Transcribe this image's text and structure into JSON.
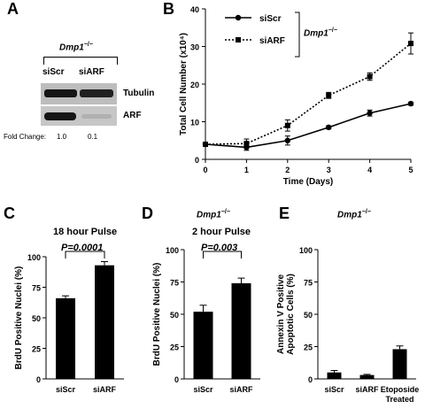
{
  "panels": {
    "A": {
      "letter": "A",
      "genotype_gene": "Dmp1",
      "genotype_sup": "−/−",
      "lanes": [
        "siScr",
        "siARF"
      ],
      "bands": [
        "Tubulin",
        "ARF"
      ],
      "fold_label": "Fold Change:",
      "fold_values": [
        "1.0",
        "0.1"
      ]
    },
    "B": {
      "letter": "B",
      "genotype_gene": "Dmp1",
      "genotype_sup": "−/−"
    },
    "C": {
      "letter": "C",
      "subtitle": "18 hour Pulse",
      "pvalue": "P=0.0001"
    },
    "D": {
      "letter": "D",
      "genotype_gene": "Dmp1",
      "genotype_sup": "−/−",
      "subtitle": "2 hour Pulse",
      "pvalue": "P=0.003"
    },
    "E": {
      "letter": "E",
      "genotype_gene": "Dmp1",
      "genotype_sup": "−/−"
    }
  },
  "chart_data": [
    {
      "panel": "B",
      "type": "line",
      "xlabel": "Time (Days)",
      "ylabel": "Total Cell Number (x10⁴)",
      "x": [
        0,
        1,
        2,
        3,
        4,
        5
      ],
      "xticks": [
        "0",
        "1",
        "2",
        "3",
        "4",
        "5"
      ],
      "yticks": [
        "0",
        "10",
        "20",
        "30",
        "40"
      ],
      "xlim": [
        0,
        5
      ],
      "ylim": [
        0,
        40
      ],
      "series": [
        {
          "name": "siScr",
          "style": "solid",
          "marker": "circle",
          "values": [
            4,
            3.2,
            5,
            8.5,
            12.3,
            14.8
          ],
          "errors": [
            0.4,
            0.8,
            1.2,
            0.4,
            0.8,
            0.4
          ]
        },
        {
          "name": "siARF",
          "style": "dotted",
          "marker": "square",
          "values": [
            4,
            4.2,
            9,
            17,
            22,
            30.8
          ],
          "errors": [
            0.4,
            1.2,
            1.5,
            0.8,
            1,
            2.8
          ]
        }
      ]
    },
    {
      "panel": "C",
      "type": "bar",
      "ylabel": "BrdU Positive Nuclei (%)",
      "categories": [
        "siScr",
        "siARF"
      ],
      "values": [
        66,
        93
      ],
      "errors": [
        2,
        3
      ],
      "yticks": [
        "0",
        "25",
        "50",
        "75",
        "100"
      ],
      "ylim": [
        0,
        100
      ]
    },
    {
      "panel": "D",
      "type": "bar",
      "ylabel": "BrdU Positive Nuclei (%)",
      "categories": [
        "siScr",
        "siARF"
      ],
      "values": [
        52,
        74
      ],
      "errors": [
        5,
        4
      ],
      "yticks": [
        "0",
        "25",
        "50",
        "75",
        "100"
      ],
      "ylim": [
        0,
        100
      ]
    },
    {
      "panel": "E",
      "type": "bar",
      "ylabel": [
        "Annexin V Positive",
        "Apoptotic Cells (%)"
      ],
      "categories": [
        [
          "siScr"
        ],
        [
          "siARF"
        ],
        [
          "Etoposide",
          "Treated"
        ]
      ],
      "values": [
        5,
        3,
        23
      ],
      "errors": [
        1.5,
        0.5,
        2.5
      ],
      "yticks": [
        "0",
        "25",
        "50",
        "75",
        "100"
      ],
      "ylim": [
        0,
        100
      ]
    }
  ]
}
